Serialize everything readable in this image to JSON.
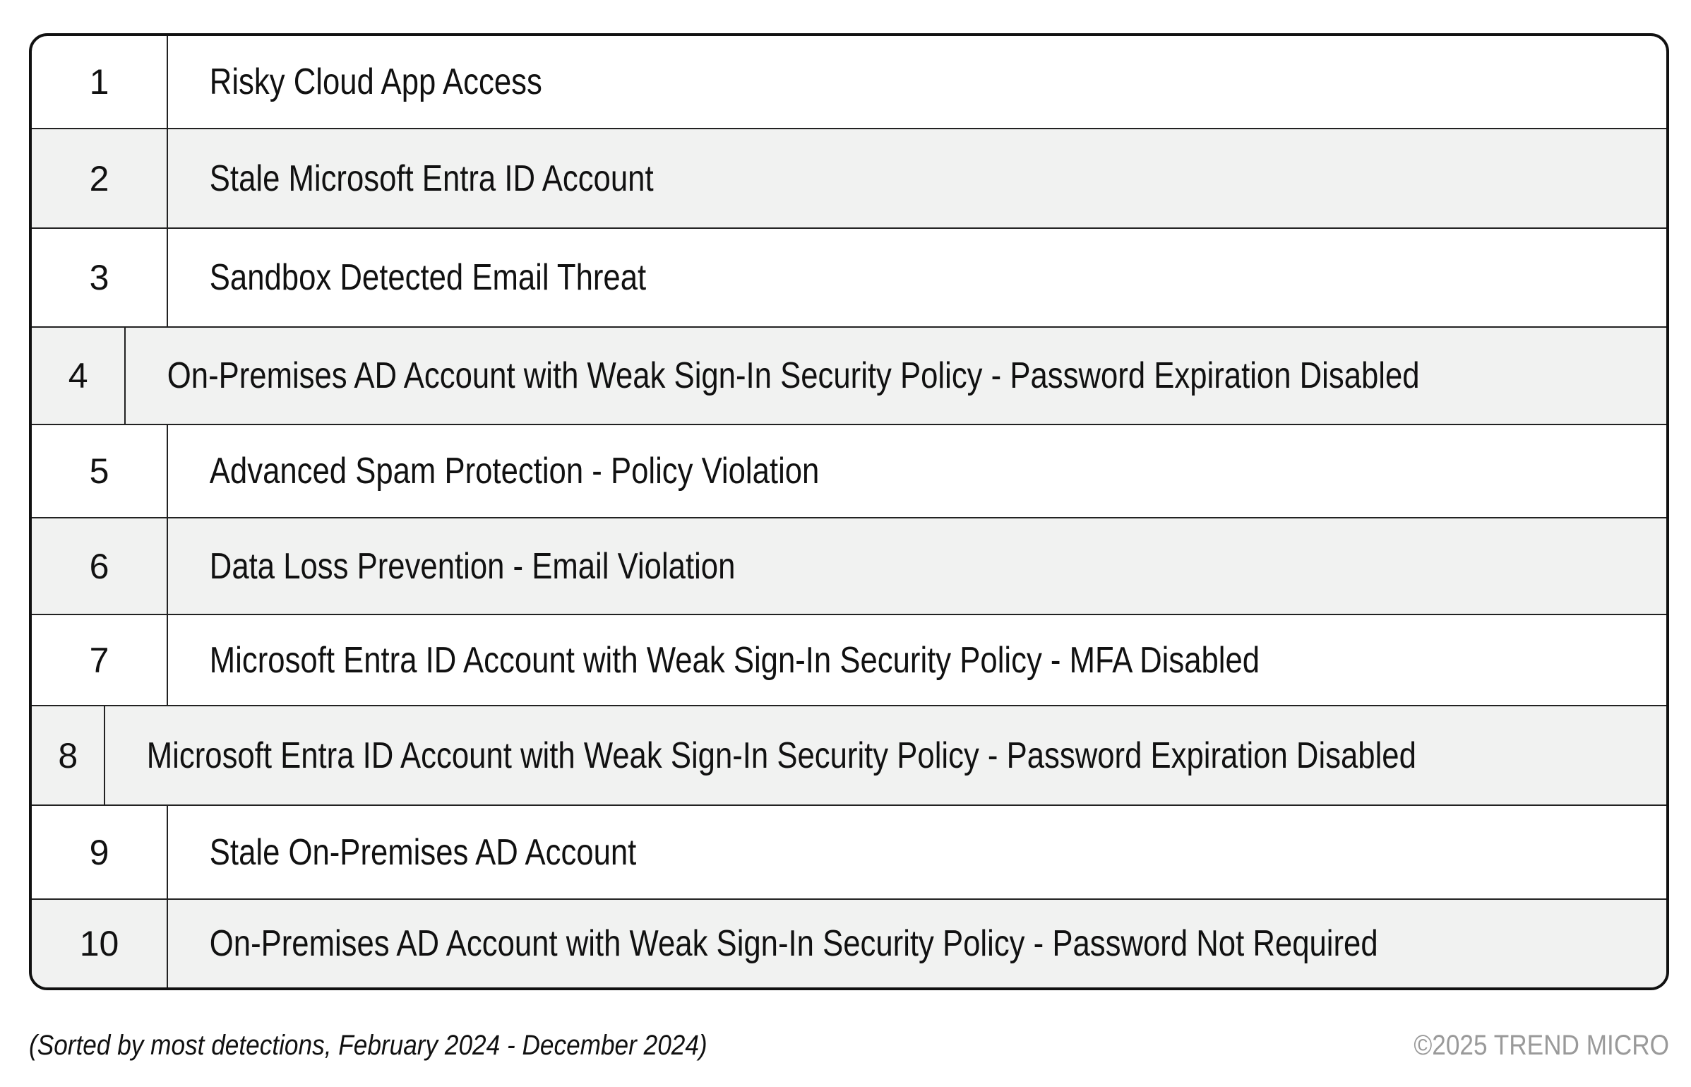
{
  "rows": [
    {
      "rank": "1",
      "name": "Risky Cloud App Access"
    },
    {
      "rank": "2",
      "name": "Stale Microsoft Entra ID Account"
    },
    {
      "rank": "3",
      "name": "Sandbox Detected Email Threat"
    },
    {
      "rank": "4",
      "name": "On-Premises AD Account with Weak Sign-In Security Policy - Password Expiration Disabled"
    },
    {
      "rank": "5",
      "name": "Advanced Spam Protection - Policy Violation"
    },
    {
      "rank": "6",
      "name": "Data Loss Prevention - Email Violation"
    },
    {
      "rank": "7",
      "name": "Microsoft Entra ID Account with Weak Sign-In Security Policy - MFA Disabled"
    },
    {
      "rank": "8",
      "name": "Microsoft Entra ID Account with Weak Sign-In Security Policy - Password Expiration Disabled"
    },
    {
      "rank": "9",
      "name": "Stale On-Premises AD Account"
    },
    {
      "rank": "10",
      "name": "On-Premises AD Account with Weak Sign-In Security Policy - Password Not Required"
    }
  ],
  "footnote": "(Sorted by most detections, February 2024 - December 2024)",
  "copyright": "©2025 TREND MICRO",
  "colors": {
    "alt_row": "#f1f2f1",
    "border": "#111111",
    "copyright": "#9a9a9a"
  }
}
